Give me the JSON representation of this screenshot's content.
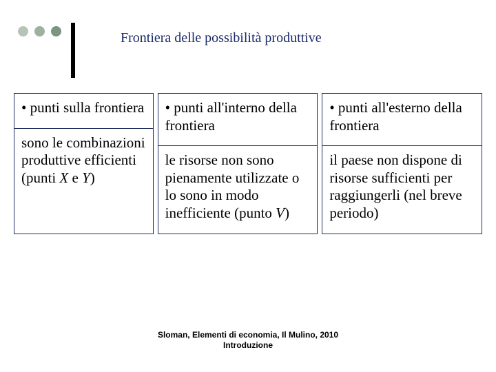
{
  "deco": {
    "dot_colors": [
      "#b8c4b8",
      "#9fb09f",
      "#7a9680"
    ],
    "bar_color": "#000000"
  },
  "title": {
    "text": "Frontiera delle possibilità produttive",
    "color": "#1a2a6a",
    "fontsize": 20
  },
  "table": {
    "border_color": "#1a2a5a",
    "columns": [
      {
        "header": "• punti sulla frontiera",
        "body_html": "sono le combinazioni produttive efficienti (punti <span class=\"italic\">X</span> e <span class=\"italic\">Y</span>)"
      },
      {
        "header": "• punti all'interno della frontiera",
        "body_html": "le risorse non sono pienamente utilizzate o lo sono in modo inefficiente (punto <span class=\"italic\">V</span>)"
      },
      {
        "header": "• punti all'esterno della frontiera",
        "body_html": "il paese non dispone di risorse sufficienti per raggiungerli (nel breve periodo)"
      }
    ]
  },
  "footer": {
    "line1": "Sloman, Elementi di economia, Il Mulino, 2010",
    "line2": "Introduzione"
  }
}
